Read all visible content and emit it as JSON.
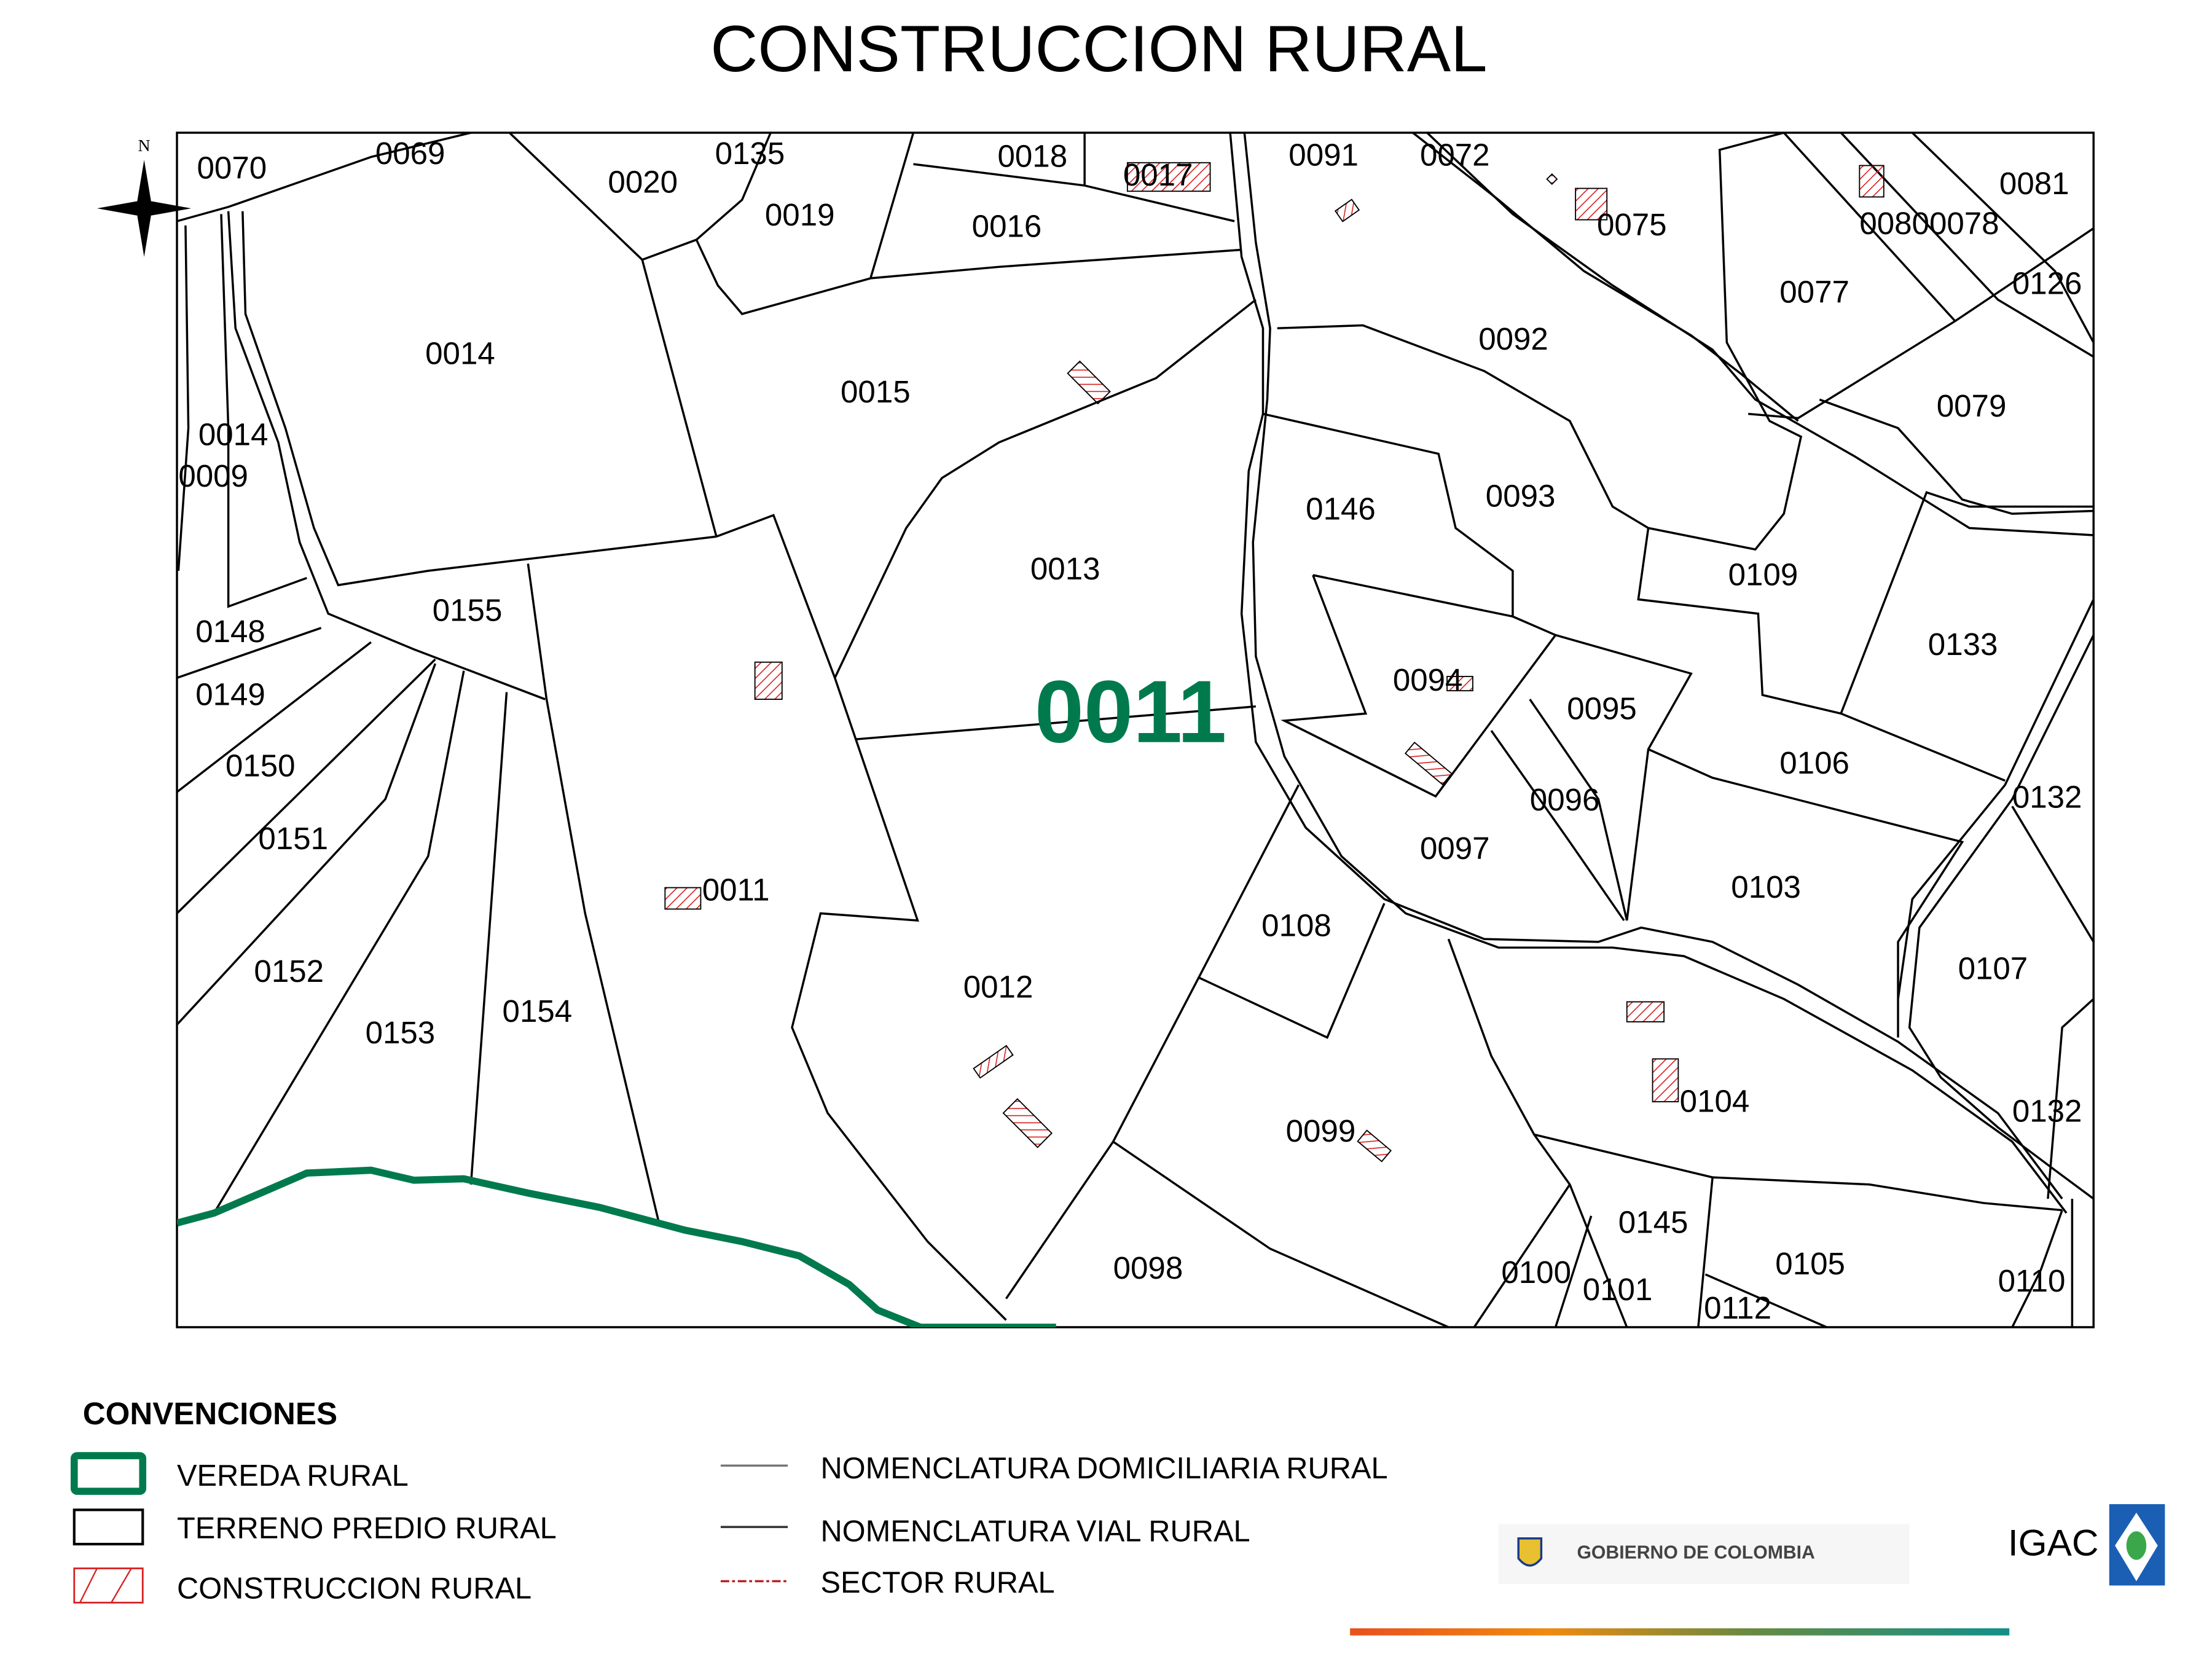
{
  "title": "CONSTRUCCION  RURAL",
  "north_label": "N",
  "vereda_code": "0011",
  "parcels": [
    "0070",
    "0069",
    "0020",
    "0135",
    "0019",
    "0018",
    "0017",
    "0016",
    "0091",
    "0072",
    "0075",
    "0081",
    "00800078",
    "0126",
    "0077",
    "0092",
    "0079",
    "0014",
    "0015",
    "0014",
    "0009",
    "0146",
    "0093",
    "0109",
    "0013",
    "0133",
    "0148",
    "0155",
    "0149",
    "0094",
    "0095",
    "0106",
    "0150",
    "0096",
    "0132",
    "0151",
    "0097",
    "0103",
    "0011",
    "0108",
    "0107",
    "0152",
    "0012",
    "0154",
    "0153",
    "0104",
    "0132",
    "0099",
    "0145",
    "0105",
    "0098",
    "0100",
    "0110",
    "0101",
    "0112"
  ],
  "legend": {
    "heading": "CONVENCIONES",
    "items": [
      {
        "label": "VEREDA RURAL",
        "symbol": "green-box"
      },
      {
        "label": "TERRENO PREDIO RURAL",
        "symbol": "black-box"
      },
      {
        "label": "CONSTRUCCION RURAL",
        "symbol": "red-hatch"
      },
      {
        "label": "NOMENCLATURA DOMICILIARIA  RURAL",
        "symbol": "gray-line"
      },
      {
        "label": "NOMENCLATURA VIAL RURAL",
        "symbol": "dark-line"
      },
      {
        "label": "SECTOR RURAL",
        "symbol": "red-dash-dot"
      }
    ]
  },
  "logos": {
    "gov": "GOBIERNO DE COLOMBIA",
    "igac": "IGAC"
  },
  "colors": {
    "vereda": "#007a4d",
    "construccion": "#d62020",
    "lines": "#000000"
  }
}
